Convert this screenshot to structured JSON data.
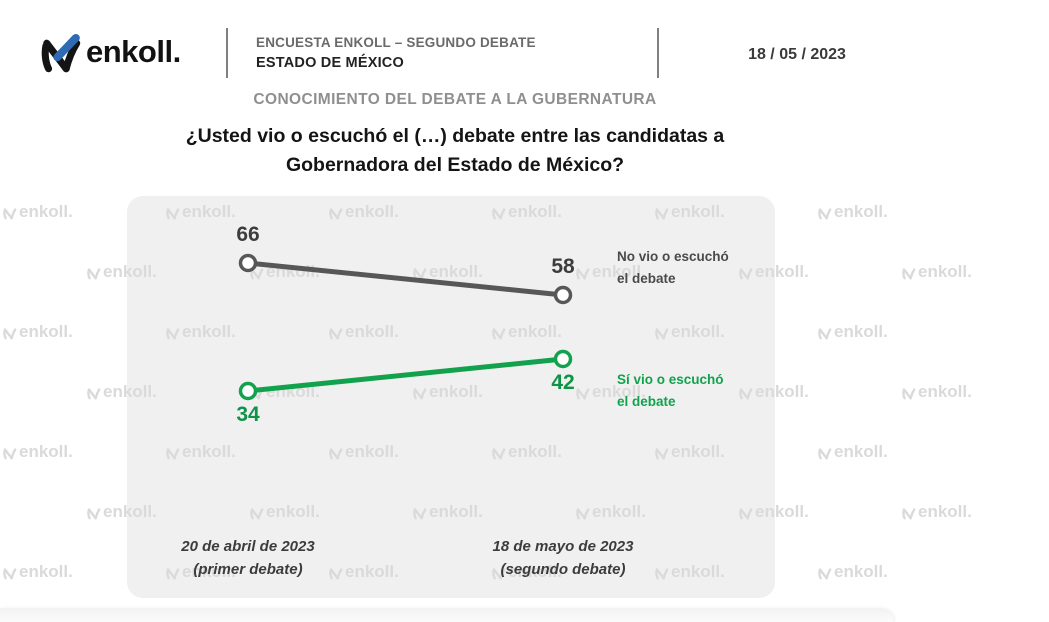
{
  "header": {
    "logo_text": "enkoll.",
    "kicker": "ENCUESTA ENKOLL – SEGUNDO DEBATE",
    "region": "ESTADO DE MÉXICO",
    "date": "18 / 05 / 2023"
  },
  "section_title": "CONOCIMIENTO DEL DEBATE A LA GUBERNATURA",
  "question": "¿Usted vio o escuchó el (…) debate entre las candidatas a Gobernadora del Estado de México?",
  "watermark_text": "enkoll.",
  "colors": {
    "gray_series": "#575757",
    "green_series": "#12a24e",
    "gray_label": "#3d3d3d",
    "green_label": "#0f9447",
    "panel_bg": "#f0f0f0",
    "watermark": "#dadada",
    "logo_blue": "#2f6bb3"
  },
  "chart_data": {
    "type": "line",
    "title": "",
    "xlabel": "",
    "ylabel": "",
    "ylim": [
      0,
      100
    ],
    "grid": false,
    "legend_position": "right",
    "data_labels": true,
    "categories": [
      "20 de abril de 2023 (primer debate)",
      "18 de mayo de 2023 (segundo debate)"
    ],
    "category_lines": [
      [
        "20 de abril de 2023",
        "(primer debate)"
      ],
      [
        "18 de mayo de 2023",
        "(segundo debate)"
      ]
    ],
    "series": [
      {
        "name": "No vio o escuchó el debate",
        "legend_lines": [
          "No vio o escuchó",
          "el debate"
        ],
        "values": [
          66,
          58
        ],
        "color": "#575757",
        "label_color": "#3d3d3d"
      },
      {
        "name": "Sí vio o escuchó el debate",
        "legend_lines": [
          "Sí vio o escuchó",
          "el debate"
        ],
        "values": [
          34,
          42
        ],
        "color": "#12a24e",
        "label_color": "#0f9447"
      }
    ]
  }
}
